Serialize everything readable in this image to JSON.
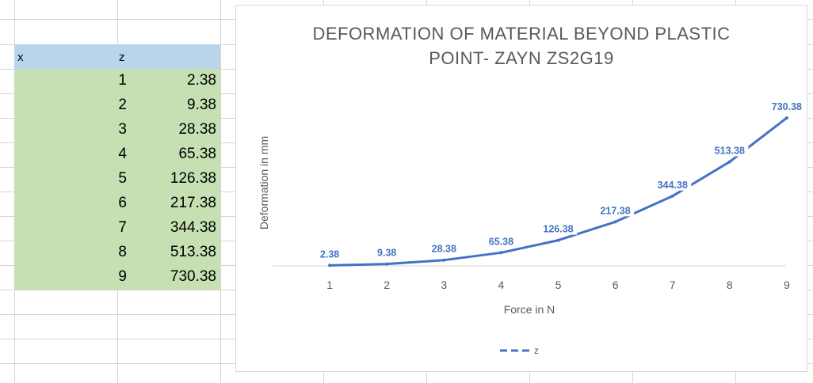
{
  "table": {
    "headers": {
      "x": "x",
      "z": "z"
    },
    "rows": [
      {
        "x": "1",
        "z": "2.38"
      },
      {
        "x": "2",
        "z": "9.38"
      },
      {
        "x": "3",
        "z": "28.38"
      },
      {
        "x": "4",
        "z": "65.38"
      },
      {
        "x": "5",
        "z": "126.38"
      },
      {
        "x": "6",
        "z": "217.38"
      },
      {
        "x": "7",
        "z": "344.38"
      },
      {
        "x": "8",
        "z": "513.38"
      },
      {
        "x": "9",
        "z": "730.38"
      }
    ]
  },
  "chart_data": {
    "type": "line",
    "title_lines": [
      "DEFORMATION OF MATERIAL BEYOND PLASTIC",
      "POINT- ZAYN ZS2G19"
    ],
    "xlabel": "Force in N",
    "ylabel": "Deformation in mm",
    "categories": [
      "1",
      "2",
      "3",
      "4",
      "5",
      "6",
      "7",
      "8",
      "9"
    ],
    "series": [
      {
        "name": "z",
        "values": [
          2.38,
          9.38,
          28.38,
          65.38,
          126.38,
          217.38,
          344.38,
          513.38,
          730.38
        ],
        "labels": [
          "2.38",
          "9.38",
          "28.38",
          "65.38",
          "126.38",
          "217.38",
          "344.38",
          "513.38",
          "730.38"
        ],
        "color": "#4472c4"
      }
    ],
    "legend_position": "bottom",
    "grid": false
  }
}
